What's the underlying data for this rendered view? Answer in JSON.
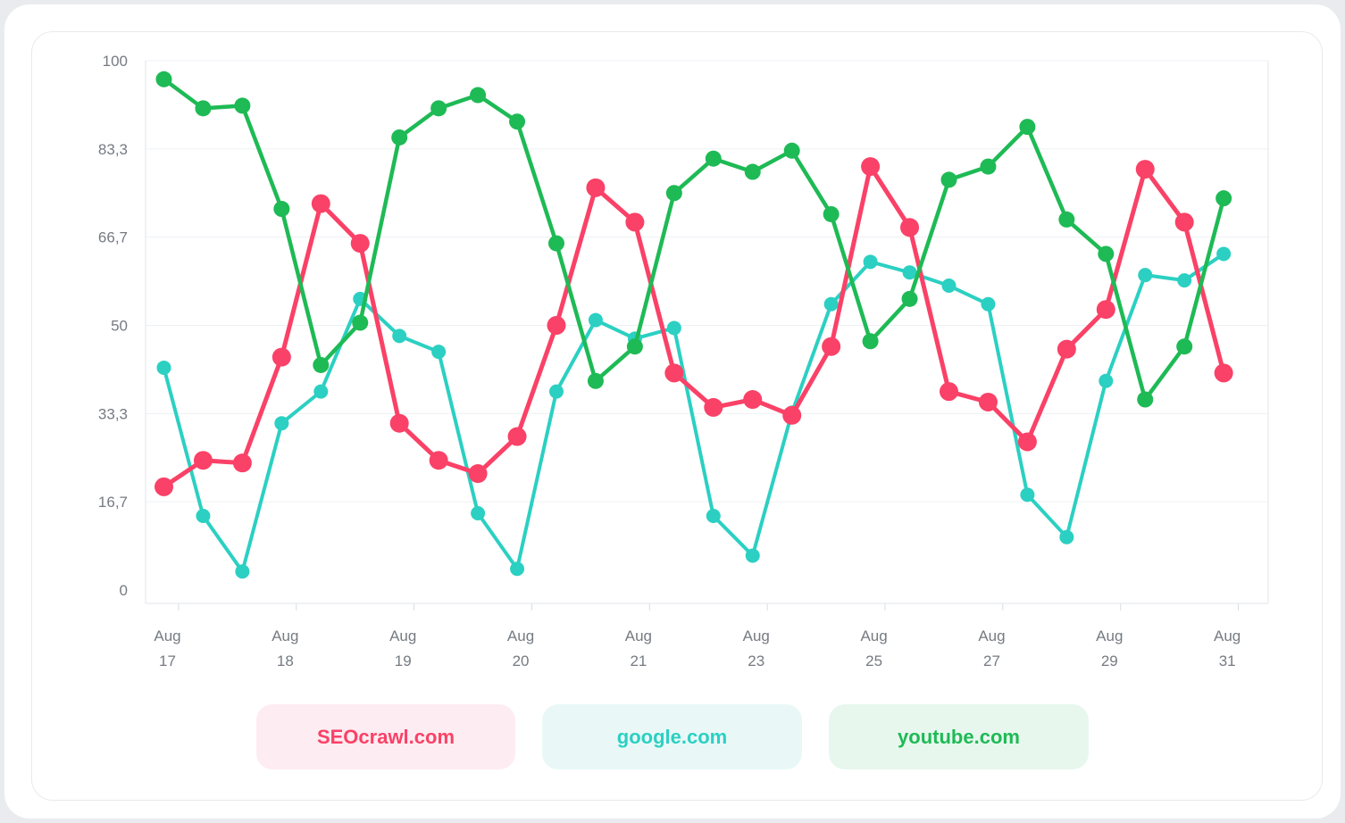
{
  "chart_data": {
    "type": "line",
    "title": "",
    "xlabel": "",
    "ylabel": "",
    "ylim": [
      0,
      100
    ],
    "grid": "horizontal",
    "legend_position": "bottom",
    "y_ticks": [
      {
        "label": "100",
        "value": 100
      },
      {
        "label": "83,3",
        "value": 83.33
      },
      {
        "label": "66,7",
        "value": 66.67
      },
      {
        "label": "50",
        "value": 50
      },
      {
        "label": "33,3",
        "value": 33.33
      },
      {
        "label": "16,7",
        "value": 16.67
      },
      {
        "label": "0",
        "value": 0
      }
    ],
    "n_points": 28,
    "x_tick_labels": [
      {
        "index": 0,
        "month": "Aug",
        "day": "17"
      },
      {
        "index": 3,
        "month": "Aug",
        "day": "18"
      },
      {
        "index": 6,
        "month": "Aug",
        "day": "19"
      },
      {
        "index": 9,
        "month": "Aug",
        "day": "20"
      },
      {
        "index": 12,
        "month": "Aug",
        "day": "21"
      },
      {
        "index": 15,
        "month": "Aug",
        "day": "23"
      },
      {
        "index": 18,
        "month": "Aug",
        "day": "25"
      },
      {
        "index": 21,
        "month": "Aug",
        "day": "27"
      },
      {
        "index": 24,
        "month": "Aug",
        "day": "29"
      },
      {
        "index": 27,
        "month": "Aug",
        "day": "31"
      }
    ],
    "series": [
      {
        "name": "google.com",
        "color": "#2BD0C2",
        "line_width": 4,
        "marker_radius": 8,
        "values": [
          42,
          14,
          3.5,
          31.5,
          37.5,
          55,
          48,
          45,
          14.5,
          4,
          37.5,
          51,
          47.5,
          49.5,
          14,
          6.5,
          33.5,
          54,
          62,
          60,
          57.5,
          54,
          18,
          10,
          39.5,
          59.5,
          58.5,
          63.5
        ]
      },
      {
        "name": "SEOcrawl.com",
        "color": "#FA4167",
        "line_width": 5,
        "marker_radius": 10.5,
        "values": [
          19.5,
          24.5,
          24,
          44,
          73,
          65.5,
          31.5,
          24.5,
          22,
          29,
          50,
          76,
          69.5,
          41,
          34.5,
          36,
          33,
          46,
          80,
          68.5,
          37.5,
          35.5,
          28,
          45.5,
          53,
          79.5,
          69.5,
          41
        ]
      },
      {
        "name": "youtube.com",
        "color": "#1EBA55",
        "line_width": 4.5,
        "marker_radius": 9,
        "values": [
          96.5,
          91,
          91.5,
          72,
          42.5,
          50.5,
          85.5,
          91,
          93.5,
          88.5,
          65.5,
          39.5,
          46,
          75,
          81.5,
          79,
          83,
          71,
          47,
          55,
          77.5,
          80,
          87.5,
          70,
          63.5,
          36,
          46,
          74
        ]
      }
    ]
  },
  "legend": {
    "items": [
      {
        "label": "SEOcrawl.com",
        "text_color": "#FA4167",
        "bg_color": "#FDECF1"
      },
      {
        "label": "google.com",
        "text_color": "#2BD0C2",
        "bg_color": "#E9F8F7"
      },
      {
        "label": "youtube.com",
        "text_color": "#1EBA55",
        "bg_color": "#E8F7EE"
      }
    ]
  }
}
